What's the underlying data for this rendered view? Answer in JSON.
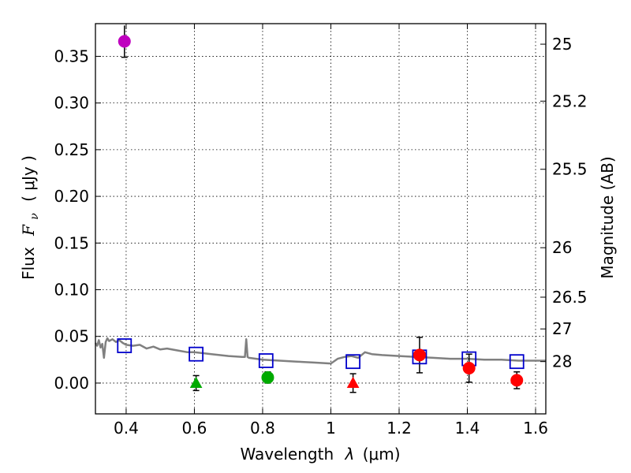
{
  "chart_data": {
    "type": "scatter",
    "xlabel": "Wavelength",
    "xlabel_symbol": "λ",
    "xlabel_unit": "(μm)",
    "ylabel": "Flux",
    "ylabel_symbol": "F",
    "ylabel_subscript": "ν",
    "ylabel_unit": "( μJy )",
    "y2label": "Magnitude (AB)",
    "xlim": [
      0.31,
      1.63
    ],
    "ylim": [
      -0.033,
      0.385
    ],
    "grid": true,
    "x_ticks": [
      {
        "value": 0.4,
        "label": "0.4"
      },
      {
        "value": 0.6,
        "label": "0.6"
      },
      {
        "value": 0.8,
        "label": "0.8"
      },
      {
        "value": 1.0,
        "label": "1"
      },
      {
        "value": 1.2,
        "label": "1.2"
      },
      {
        "value": 1.4,
        "label": "1.4"
      },
      {
        "value": 1.6,
        "label": "1.6"
      }
    ],
    "y_ticks": [
      {
        "value": 0.0,
        "label": "0.00"
      },
      {
        "value": 0.05,
        "label": "0.05"
      },
      {
        "value": 0.1,
        "label": "0.10"
      },
      {
        "value": 0.15,
        "label": "0.15"
      },
      {
        "value": 0.2,
        "label": "0.20"
      },
      {
        "value": 0.25,
        "label": "0.25"
      },
      {
        "value": 0.3,
        "label": "0.30"
      },
      {
        "value": 0.35,
        "label": "0.35"
      }
    ],
    "magnitude_ticks": [
      {
        "flux": 0.363,
        "label": "25"
      },
      {
        "flux": 0.302,
        "label": "25.2"
      },
      {
        "flux": 0.229,
        "label": "25.5"
      },
      {
        "flux": 0.145,
        "label": "26"
      },
      {
        "flux": 0.092,
        "label": "26.5"
      },
      {
        "flux": 0.058,
        "label": "27"
      },
      {
        "flux": 0.023,
        "label": "28"
      }
    ],
    "model_sed": {
      "name": "model spectrum",
      "color": "#808080",
      "x": [
        0.31,
        0.315,
        0.32,
        0.325,
        0.33,
        0.335,
        0.34,
        0.345,
        0.35,
        0.36,
        0.37,
        0.38,
        0.39,
        0.4,
        0.42,
        0.44,
        0.46,
        0.48,
        0.5,
        0.52,
        0.55,
        0.58,
        0.6,
        0.65,
        0.7,
        0.74,
        0.748,
        0.752,
        0.756,
        0.76,
        0.8,
        0.85,
        0.9,
        0.95,
        1.0,
        1.02,
        1.04,
        1.06,
        1.08,
        1.1,
        1.12,
        1.15,
        1.2,
        1.25,
        1.3,
        1.35,
        1.4,
        1.45,
        1.5,
        1.55,
        1.6,
        1.63
      ],
      "y": [
        0.043,
        0.04,
        0.046,
        0.038,
        0.042,
        0.027,
        0.044,
        0.048,
        0.045,
        0.047,
        0.044,
        0.046,
        0.043,
        0.041,
        0.04,
        0.041,
        0.037,
        0.039,
        0.036,
        0.037,
        0.035,
        0.033,
        0.033,
        0.031,
        0.029,
        0.028,
        0.028,
        0.047,
        0.028,
        0.027,
        0.025,
        0.024,
        0.023,
        0.022,
        0.021,
        0.026,
        0.028,
        0.029,
        0.027,
        0.033,
        0.031,
        0.03,
        0.029,
        0.028,
        0.027,
        0.026,
        0.026,
        0.025,
        0.025,
        0.024,
        0.024,
        0.024
      ]
    },
    "model_photometry": {
      "name": "model bands",
      "marker": "open-square",
      "color": "#0000cc",
      "x": [
        0.395,
        0.605,
        0.81,
        1.065,
        1.26,
        1.405,
        1.545
      ],
      "y": [
        0.04,
        0.031,
        0.024,
        0.023,
        0.028,
        0.026,
        0.023
      ]
    },
    "observations": [
      {
        "x": 0.395,
        "y": 0.366,
        "err": 0.017,
        "marker": "circle",
        "color": "#bf00bf",
        "cap": true,
        "cap_top": false
      },
      {
        "x": 0.605,
        "y": 0.0,
        "err": 0.008,
        "marker": "triangle",
        "color": "#00aa00",
        "cap": true,
        "cap_top": true
      },
      {
        "x": 0.815,
        "y": 0.006,
        "err": 0.006,
        "marker": "circle",
        "color": "#00aa00",
        "cap": true,
        "cap_top": true
      },
      {
        "x": 1.065,
        "y": 0.0,
        "err": 0.01,
        "marker": "triangle",
        "color": "#ff0000",
        "cap": true,
        "cap_top": true
      },
      {
        "x": 1.26,
        "y": 0.03,
        "err": 0.019,
        "marker": "circle",
        "color": "#ff0000",
        "cap": true,
        "cap_top": true
      },
      {
        "x": 1.405,
        "y": 0.016,
        "err": 0.015,
        "marker": "circle",
        "color": "#ff0000",
        "cap": true,
        "cap_top": true
      },
      {
        "x": 1.545,
        "y": 0.003,
        "err": 0.009,
        "marker": "circle",
        "color": "#ff0000",
        "cap": true,
        "cap_top": true
      }
    ]
  }
}
